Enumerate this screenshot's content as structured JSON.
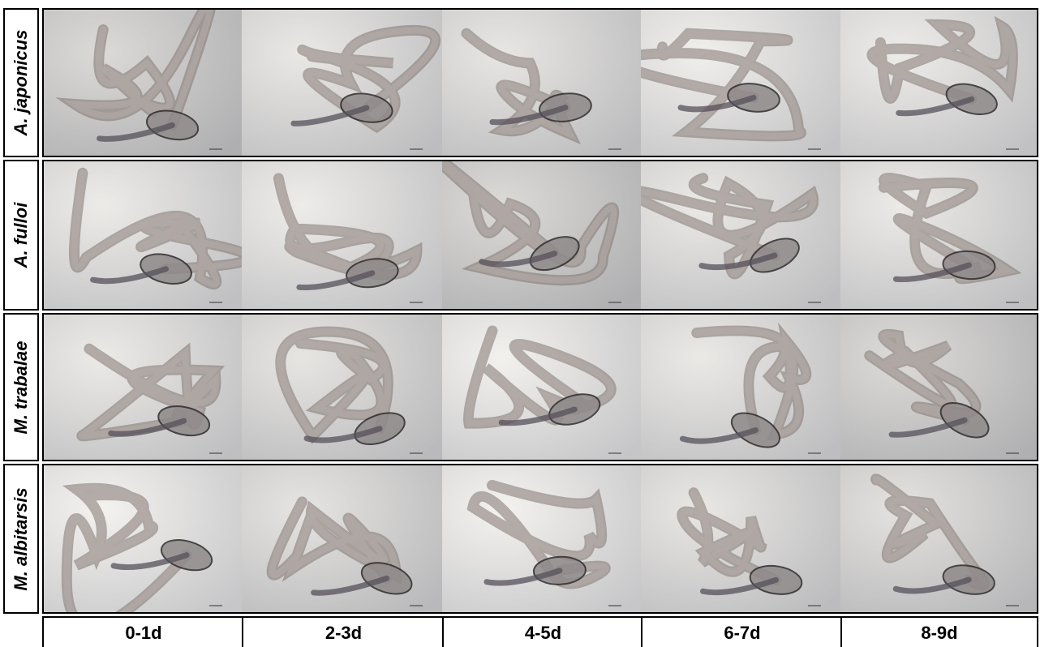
{
  "row_labels": [
    "A. japonicus",
    "A. fulloi",
    "M. trabalae",
    "M. albitarsis"
  ],
  "column_labels": [
    "0-1d",
    "2-3d",
    "4-5d",
    "6-7d",
    "8-9d"
  ]
}
